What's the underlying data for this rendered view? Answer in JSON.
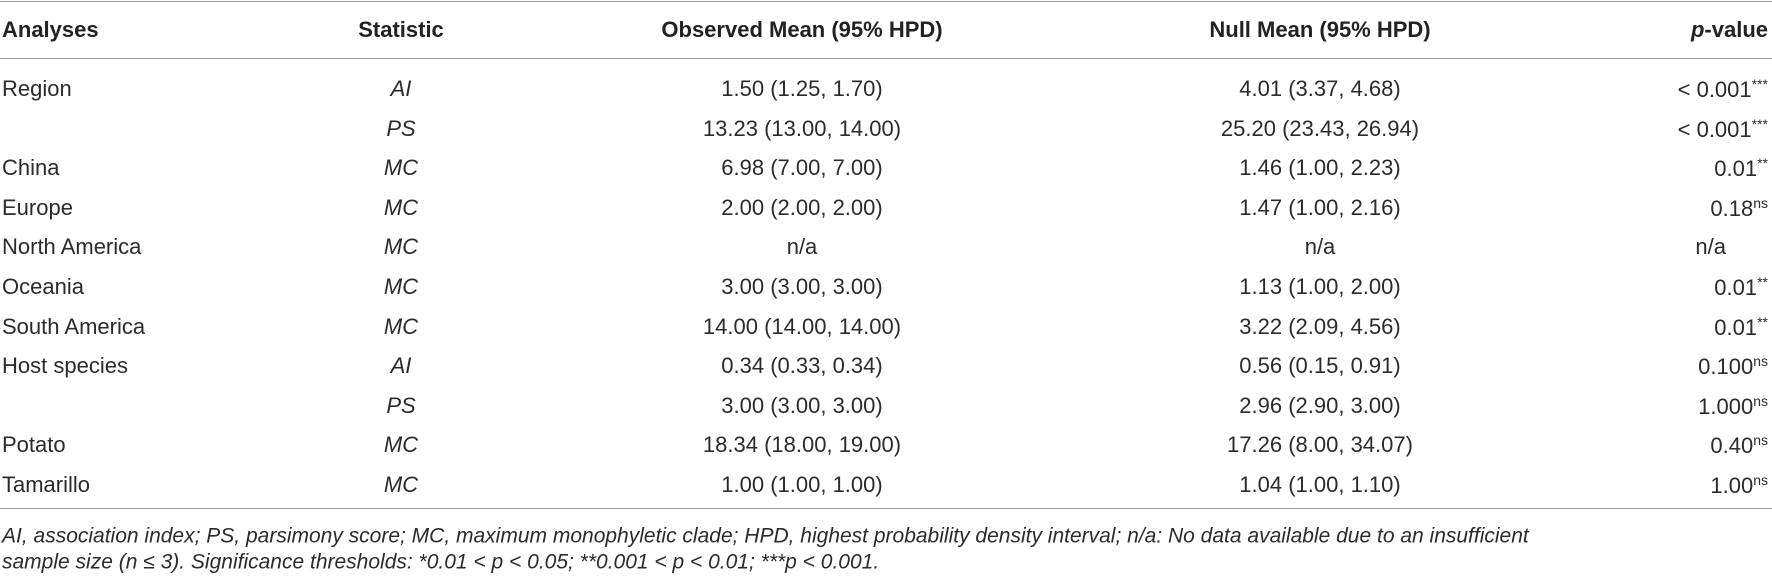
{
  "header": {
    "analyses": "Analyses",
    "statistic": "Statistic",
    "observed": "Observed Mean (95% HPD)",
    "null_mean": "Null Mean (95% HPD)",
    "p_value": {
      "italic": "p",
      "text": "-value"
    }
  },
  "rows": [
    {
      "analysis": "Region",
      "statistic": "AI",
      "observed": "1.50 (1.25, 1.70)",
      "null_mean": "4.01 (3.37, 4.68)",
      "p_value": "< 0.001",
      "significance": "***"
    },
    {
      "analysis": null,
      "statistic": "PS",
      "observed": "13.23 (13.00, 14.00)",
      "null_mean": "25.20 (23.43, 26.94)",
      "p_value": "< 0.001",
      "significance": "***"
    },
    {
      "analysis": "China",
      "statistic": "MC",
      "observed": "6.98 (7.00, 7.00)",
      "null_mean": "1.46 (1.00, 2.23)",
      "p_value": "0.01",
      "significance": "**"
    },
    {
      "analysis": "Europe",
      "statistic": "MC",
      "observed": "2.00 (2.00, 2.00)",
      "null_mean": "1.47 (1.00, 2.16)",
      "p_value": "0.18",
      "significance": "ns"
    },
    {
      "analysis": "North America",
      "statistic": "MC",
      "observed": "n/a",
      "null_mean": "n/a",
      "p_value": "n/a"
    },
    {
      "analysis": "Oceania",
      "statistic": "MC",
      "observed": "3.00 (3.00, 3.00)",
      "null_mean": "1.13 (1.00, 2.00)",
      "p_value": "0.01",
      "significance": "**"
    },
    {
      "analysis": "South America",
      "statistic": "MC",
      "observed": "14.00 (14.00, 14.00)",
      "null_mean": "3.22 (2.09, 4.56)",
      "p_value": "0.01",
      "significance": "**"
    },
    {
      "analysis": "Host species",
      "statistic": "AI",
      "observed": "0.34 (0.33, 0.34)",
      "null_mean": "0.56 (0.15, 0.91)",
      "p_value": "0.100",
      "significance": "ns"
    },
    {
      "analysis": null,
      "statistic": "PS",
      "observed": "3.00 (3.00, 3.00)",
      "null_mean": "2.96 (2.90, 3.00)",
      "p_value": "1.000",
      "significance": "ns"
    },
    {
      "analysis": "Potato",
      "statistic": "MC",
      "observed": "18.34 (18.00, 19.00)",
      "null_mean": "17.26 (8.00, 34.07)",
      "p_value": "0.40",
      "significance": "ns"
    },
    {
      "analysis": "Tamarillo",
      "statistic": "MC",
      "observed": "1.00 (1.00, 1.00)",
      "null_mean": "1.04 (1.00, 1.10)",
      "p_value": "1.00",
      "significance": "ns"
    }
  ],
  "footnote": {
    "lines": [
      "AI, association index; PS, parsimony score; MC, maximum monophyletic clade; HPD, highest probability density interval; n/a: No data available due to an insufficient",
      "sample size (n ≤ 3). Significance thresholds: *0.01 < p < 0.05; **0.001 < p < 0.01; ***p < 0.001."
    ]
  }
}
